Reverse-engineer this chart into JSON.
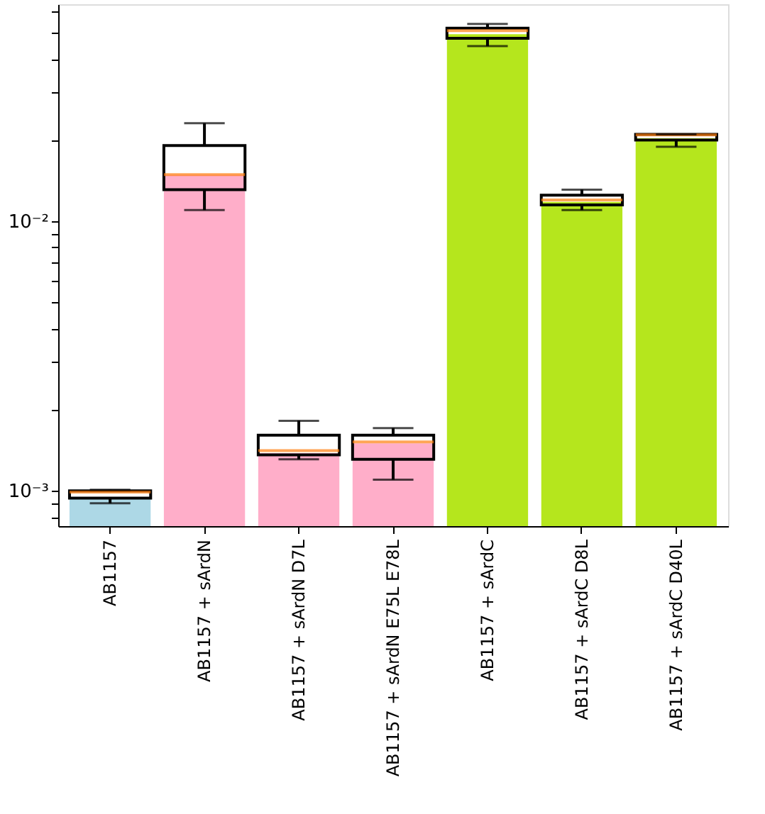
{
  "chart_data": {
    "type": "box",
    "categories": [
      "AB1157",
      "AB1157 + sArdN",
      "AB1157 + sArdN D7L",
      "AB1157 + sArdN E75L E78L",
      "AB1157 + sArdC",
      "AB1157 + sArdC D8L",
      "AB1157 + sArdC D40L"
    ],
    "series": [
      {
        "type": "bar",
        "values": [
          0.00094,
          0.0149,
          0.00138,
          0.0015,
          0.0494,
          0.0118,
          0.0203
        ],
        "colors": [
          "#add8e6",
          "#ffaec9",
          "#ffaec9",
          "#ffaec9",
          "#b5e61d",
          "#b5e61d",
          "#b5e61d"
        ]
      },
      {
        "type": "box",
        "boxes": [
          {
            "low": 0.0009,
            "q1": 0.00094,
            "median": 0.00099,
            "q3": 0.001,
            "high": 0.00101
          },
          {
            "low": 0.011,
            "q1": 0.0131,
            "median": 0.0149,
            "q3": 0.0191,
            "high": 0.0231
          },
          {
            "low": 0.00131,
            "q1": 0.00136,
            "median": 0.00141,
            "q3": 0.00161,
            "high": 0.00182
          },
          {
            "low": 0.0011,
            "q1": 0.00131,
            "median": 0.00152,
            "q3": 0.00161,
            "high": 0.00171
          },
          {
            "low": 0.0446,
            "q1": 0.0477,
            "median": 0.0509,
            "q3": 0.052,
            "high": 0.0539
          },
          {
            "low": 0.011,
            "q1": 0.0115,
            "median": 0.012,
            "q3": 0.0125,
            "high": 0.0131
          },
          {
            "low": 0.0189,
            "q1": 0.02,
            "median": 0.0209,
            "q3": 0.021,
            "high": 0.021
          }
        ]
      }
    ],
    "log": "y",
    "ylim": [
      0.00074,
      0.0638
    ],
    "yticks": [
      {
        "value": 0.0008,
        "label": null
      },
      {
        "value": 0.0009,
        "label": null
      },
      {
        "value": 0.001,
        "label": "10⁻³"
      },
      {
        "value": 0.002,
        "label": null
      },
      {
        "value": 0.003,
        "label": null
      },
      {
        "value": 0.004,
        "label": null
      },
      {
        "value": 0.005,
        "label": null
      },
      {
        "value": 0.006,
        "label": null
      },
      {
        "value": 0.007,
        "label": null
      },
      {
        "value": 0.008,
        "label": null
      },
      {
        "value": 0.009,
        "label": null
      },
      {
        "value": 0.01,
        "label": "10⁻²"
      },
      {
        "value": 0.02,
        "label": null
      },
      {
        "value": 0.03,
        "label": null
      },
      {
        "value": 0.04,
        "label": null
      },
      {
        "value": 0.05,
        "label": null
      },
      {
        "value": 0.06,
        "label": null
      }
    ],
    "grid": false,
    "legend": false
  }
}
